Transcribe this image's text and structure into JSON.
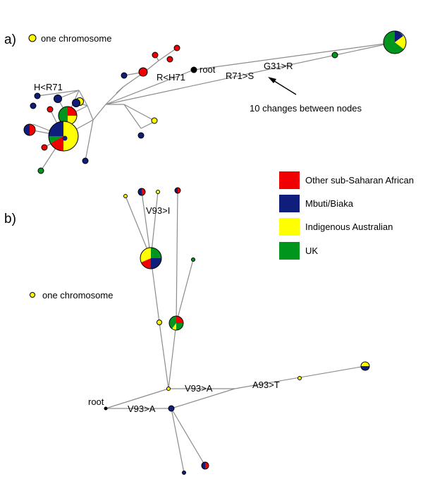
{
  "colors": {
    "other_ssa": "#f00000",
    "mbuti": "#0f1e7a",
    "indigenous": "#ffff00",
    "uk": "#00961e",
    "root": "#000000",
    "edge": "#8c8c8c"
  },
  "panel_a": {
    "label": "a)",
    "scale_text": "one chromosome",
    "root_text": "root",
    "mutations": [
      "H<R71",
      "R<H71",
      "R71>S",
      "G31>R"
    ],
    "annotation": "10 changes between nodes"
  },
  "panel_b": {
    "label": "b)",
    "scale_text": "one chromosome",
    "root_text": "root",
    "mutations": [
      "V93>I",
      "V93>A",
      "A93>T",
      "V93>A"
    ]
  },
  "legend": [
    {
      "label": "Other sub-Saharan African",
      "color": "#f00000"
    },
    {
      "label": "Mbuti/Biaka",
      "color": "#0f1e7a"
    },
    {
      "label": "Indigenous  Australian",
      "color": "#ffff00"
    },
    {
      "label": "UK",
      "color": "#00961e"
    }
  ]
}
